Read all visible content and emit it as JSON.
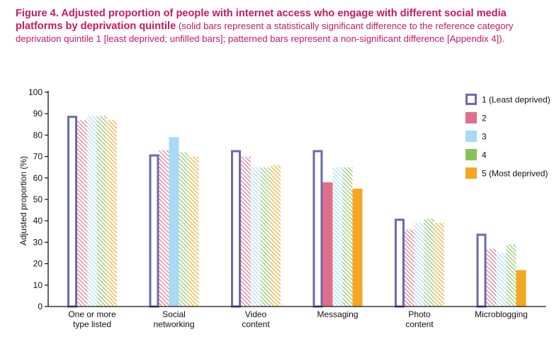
{
  "caption": {
    "lead": "Figure 4. Adjusted proportion of people with internet access who engage with different social media platforms by deprivation quintile",
    "rest": " (solid bars represent a statistically significant difference to the reference category deprivation quintile 1 [least deprived; unfilled bars]; patterned bars represent a non-significant difference [Appendix 4])."
  },
  "chart_data": {
    "type": "bar",
    "title": "",
    "ylabel": "Adjusted proportion (%)",
    "xlabel": "",
    "ylim": [
      0,
      100
    ],
    "yticks": [
      0,
      10,
      20,
      30,
      40,
      50,
      60,
      70,
      80,
      90,
      100
    ],
    "grid": false,
    "legend_position": "top-right",
    "categories": [
      [
        "One or more",
        "type listed"
      ],
      [
        "Social",
        "networking"
      ],
      [
        "Video",
        "content"
      ],
      [
        "Messaging"
      ],
      [
        "Photo",
        "content"
      ],
      [
        "Microblogging"
      ]
    ],
    "series": [
      {
        "name": "1 (Least deprived)",
        "color": "#6b6baa",
        "values": [
          89,
          71,
          73,
          73,
          41,
          34
        ],
        "style": [
          "outline",
          "outline",
          "outline",
          "outline",
          "outline",
          "outline"
        ]
      },
      {
        "name": "2",
        "color": "#e0708a",
        "values": [
          87,
          73,
          70,
          58,
          36,
          27
        ],
        "style": [
          "hatched",
          "hatched",
          "hatched",
          "solid",
          "hatched",
          "hatched"
        ]
      },
      {
        "name": "3",
        "color": "#a8daf5",
        "values": [
          89,
          79,
          65,
          65,
          39,
          25
        ],
        "style": [
          "hatched",
          "solid",
          "hatched",
          "hatched",
          "hatched",
          "hatched"
        ]
      },
      {
        "name": "4",
        "color": "#86c25a",
        "values": [
          89,
          72,
          65,
          65,
          41,
          29
        ],
        "style": [
          "hatched",
          "hatched",
          "hatched",
          "hatched",
          "hatched",
          "hatched"
        ]
      },
      {
        "name": "5 (Most deprived)",
        "color": "#f5a623",
        "values": [
          87,
          70,
          66,
          55,
          39,
          17
        ],
        "style": [
          "hatched",
          "hatched",
          "hatched",
          "solid",
          "hatched",
          "solid"
        ]
      }
    ]
  }
}
